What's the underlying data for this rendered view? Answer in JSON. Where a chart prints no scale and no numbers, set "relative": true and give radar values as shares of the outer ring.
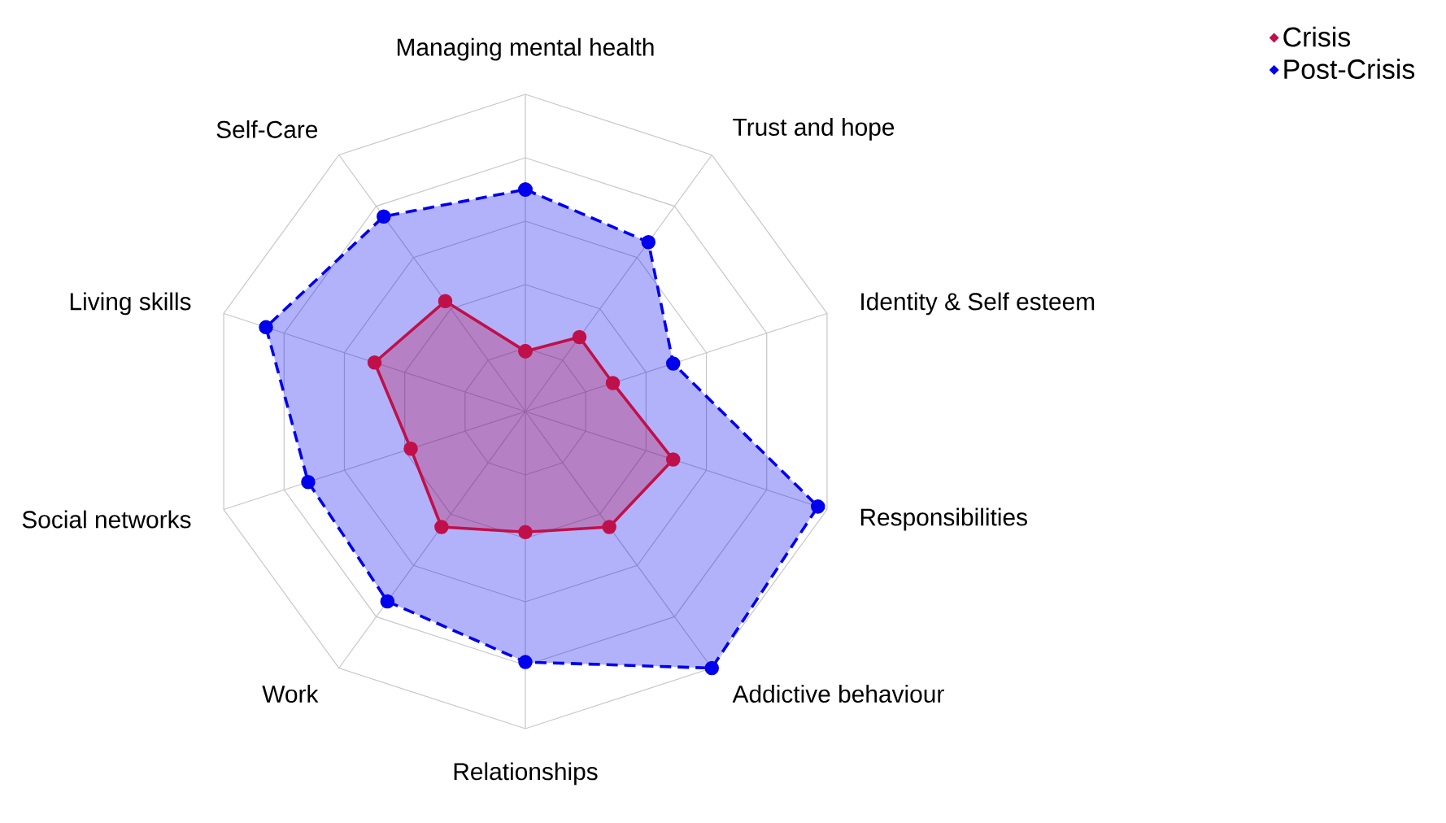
{
  "chart_data": {
    "type": "radar",
    "relative": true,
    "grid": true,
    "legend": "top right",
    "marker": "circle",
    "categories": [
      "Managing mental health",
      "Trust and hope",
      "Identity & Self esteem",
      "Responsibilities",
      "Addictive behaviour",
      "Relationships",
      "Work",
      "Social networks",
      "Living skills",
      "Self-Care"
    ],
    "series": [
      {
        "name": "Crisis",
        "color": "#c0104a",
        "line_style": "solid",
        "values": [
          0.19,
          0.29,
          0.29,
          0.49,
          0.45,
          0.38,
          0.45,
          0.38,
          0.5,
          0.43
        ]
      },
      {
        "name": "Post-Crisis",
        "color": "#0000ee",
        "line_style": "dashed",
        "values": [
          0.7,
          0.66,
          0.49,
          0.97,
          1.0,
          0.79,
          0.74,
          0.72,
          0.86,
          0.76
        ]
      }
    ]
  }
}
